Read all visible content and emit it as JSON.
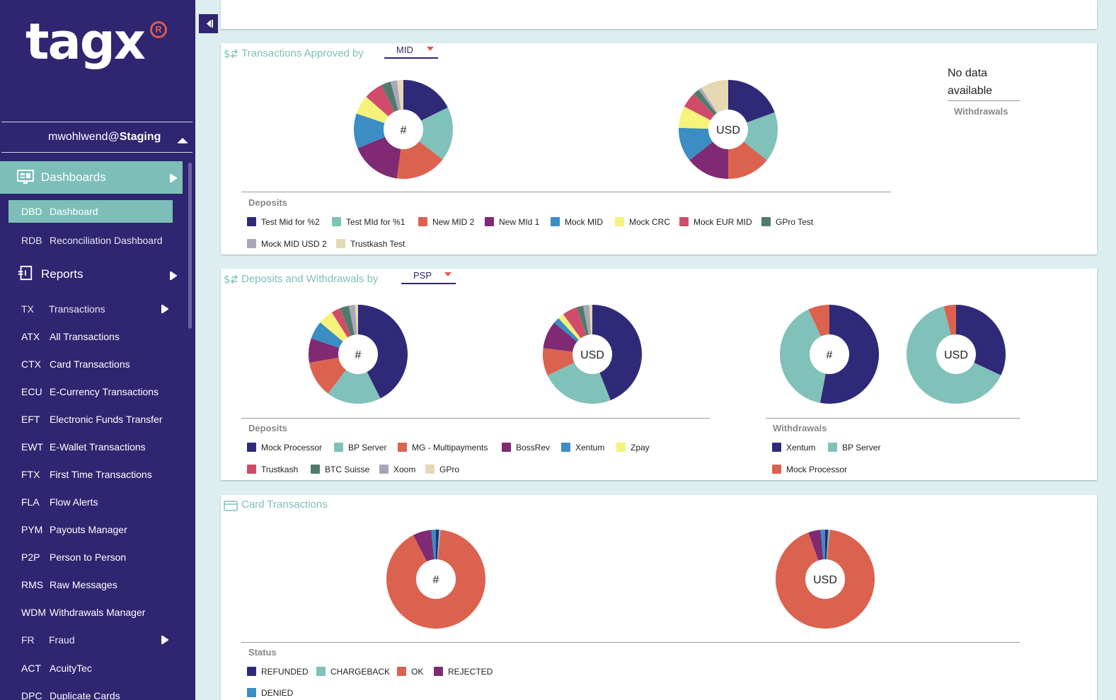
{
  "app": {
    "logo_text": "tagx",
    "logo_mark": "R",
    "user": "mwohlwend",
    "at": "@",
    "environment": "Staging"
  },
  "nav": {
    "dashboards_label": "Dashboards",
    "reports_label": "Reports",
    "dashboard_items": [
      {
        "code": "DBD",
        "label": "Dashboard"
      },
      {
        "code": "RDB",
        "label": "Reconciliation Dashboard"
      }
    ],
    "report_items": [
      {
        "code": "TX",
        "label": "Transactions"
      },
      {
        "code": "ATX",
        "label": "All Transactions"
      },
      {
        "code": "CTX",
        "label": "Card Transactions"
      },
      {
        "code": "ECU",
        "label": "E-Currency Transactions"
      },
      {
        "code": "EFT",
        "label": "Electronic Funds Transfer"
      },
      {
        "code": "EWT",
        "label": "E-Wallet Transactions"
      },
      {
        "code": "FTX",
        "label": "First Time Transactions"
      },
      {
        "code": "FLA",
        "label": "Flow Alerts"
      },
      {
        "code": "PYM",
        "label": "Payouts Manager"
      },
      {
        "code": "P2P",
        "label": "Person to Person"
      },
      {
        "code": "RMS",
        "label": "Raw Messages"
      },
      {
        "code": "WDM",
        "label": "Withdrawals Manager"
      },
      {
        "code": "FR",
        "label": "Fraud"
      },
      {
        "code": "ACT",
        "label": "AcuityTec"
      },
      {
        "code": "DPC",
        "label": "Duplicate Cards"
      }
    ]
  },
  "colors": {
    "navy": "#2f2a78",
    "teal": "#80c1b9",
    "coral": "#dc6250",
    "purple": "#7f2a72",
    "blue": "#3b8dc3",
    "yellow": "#f5f37a",
    "rose": "#d14c6a",
    "green": "#4e7c6a",
    "grey": "#a9a6bb",
    "sand": "#e6d8b4"
  },
  "panels": {
    "approved": {
      "title": "Transactions Approved by",
      "dropdown": "MID",
      "count_label": "#",
      "amount_label": "USD",
      "deposits_title": "Deposits",
      "withdrawals_title": "Withdrawals",
      "no_data": "No data available",
      "legend": [
        {
          "label": "Test Mid for %2",
          "color": "navy"
        },
        {
          "label": "Test MId for %1",
          "color": "teal"
        },
        {
          "label": "New MID 2",
          "color": "coral"
        },
        {
          "label": "New MId 1",
          "color": "purple"
        },
        {
          "label": "Mock MID",
          "color": "blue"
        },
        {
          "label": "Mock CRC",
          "color": "yellow"
        },
        {
          "label": "Mock EUR MID",
          "color": "rose"
        },
        {
          "label": "GPro Test",
          "color": "green"
        },
        {
          "label": "Mock MID USD 2",
          "color": "grey"
        },
        {
          "label": "Trustkash Test",
          "color": "sand"
        }
      ]
    },
    "psp": {
      "title": "Deposits and Withdrawals by",
      "dropdown": "PSP",
      "count_label": "#",
      "amount_label": "USD",
      "deposits_title": "Deposits",
      "withdrawals_title": "Withdrawals",
      "deposit_legend": [
        {
          "label": "Mock Processor",
          "color": "navy"
        },
        {
          "label": "BP Server",
          "color": "teal"
        },
        {
          "label": "MG - Multipayments",
          "color": "coral"
        },
        {
          "label": "BossRev",
          "color": "purple"
        },
        {
          "label": "Xentum",
          "color": "blue"
        },
        {
          "label": "Zpay",
          "color": "yellow"
        },
        {
          "label": "Trustkash",
          "color": "rose"
        },
        {
          "label": "BTC Suisse",
          "color": "green"
        },
        {
          "label": "Xoom",
          "color": "grey"
        },
        {
          "label": "GPro",
          "color": "sand"
        }
      ],
      "withdrawal_legend": [
        {
          "label": "Xentum",
          "color": "navy"
        },
        {
          "label": "BP Server",
          "color": "teal"
        },
        {
          "label": "Mock Processor",
          "color": "coral"
        }
      ]
    },
    "card": {
      "title": "Card Transactions",
      "count_label": "#",
      "amount_label": "USD",
      "status_title": "Status",
      "legend": [
        {
          "label": "REFUNDED",
          "color": "navy"
        },
        {
          "label": "CHARGEBACK",
          "color": "teal"
        },
        {
          "label": "OK",
          "color": "coral"
        },
        {
          "label": "REJECTED",
          "color": "purple"
        },
        {
          "label": "DENIED",
          "color": "blue"
        }
      ]
    }
  },
  "chart_data": [
    {
      "type": "pie",
      "title": "",
      "center_label": "#",
      "categories": [
        "Test Mid for %2",
        "Test MId for %1",
        "New MID 2",
        "New MId 1",
        "Mock MID",
        "Mock CRC",
        "Mock EUR MID",
        "GPro Test",
        "Mock MID USD 2",
        "Trustkash Test"
      ],
      "values": [
        17,
        17,
        16,
        16,
        11,
        6,
        6,
        3,
        2,
        2
      ],
      "colors": [
        "navy",
        "teal",
        "coral",
        "purple",
        "blue",
        "yellow",
        "rose",
        "green",
        "grey",
        "sand"
      ]
    },
    {
      "type": "pie",
      "title": "",
      "center_label": "USD",
      "categories": [
        "Test Mid for %2",
        "Test MId for %1",
        "New MID 2",
        "New MId 1",
        "Mock MID",
        "Mock CRC",
        "Mock EUR MID",
        "GPro Test",
        "Mock MID USD 2",
        "Trustkash Test"
      ],
      "values": [
        19,
        16,
        14,
        14,
        11,
        7,
        5,
        2,
        1,
        9
      ],
      "colors": [
        "navy",
        "teal",
        "coral",
        "purple",
        "blue",
        "yellow",
        "rose",
        "green",
        "grey",
        "sand"
      ]
    },
    {
      "type": "pie",
      "title": "",
      "center_label": "#",
      "categories": [
        "Mock Processor",
        "BP Server",
        "MG - Multipayments",
        "BossRev",
        "Xentum",
        "Zpay",
        "Trustkash",
        "BTC Suisse",
        "Xoom",
        "GPro"
      ],
      "values": [
        43,
        18,
        12,
        8,
        6,
        5,
        3,
        3,
        2,
        1
      ],
      "colors": [
        "navy",
        "teal",
        "coral",
        "purple",
        "blue",
        "yellow",
        "rose",
        "green",
        "grey",
        "sand"
      ]
    },
    {
      "type": "pie",
      "title": "",
      "center_label": "USD",
      "categories": [
        "Mock Processor",
        "BP Server",
        "MG - Multipayments",
        "BossRev",
        "Xentum",
        "Zpay",
        "Trustkash",
        "BTC Suisse",
        "Xoom",
        "GPro"
      ],
      "values": [
        44,
        24,
        9,
        9,
        2,
        2,
        5,
        2,
        2,
        1
      ],
      "colors": [
        "navy",
        "teal",
        "coral",
        "purple",
        "blue",
        "yellow",
        "rose",
        "green",
        "grey",
        "sand"
      ]
    },
    {
      "type": "pie",
      "title": "",
      "center_label": "#",
      "categories": [
        "Xentum",
        "BP Server",
        "Mock Processor"
      ],
      "values": [
        53,
        40,
        7
      ],
      "colors": [
        "navy",
        "teal",
        "coral"
      ]
    },
    {
      "type": "pie",
      "title": "",
      "center_label": "USD",
      "categories": [
        "Xentum",
        "BP Server",
        "Mock Processor"
      ],
      "values": [
        32,
        64,
        4
      ],
      "colors": [
        "navy",
        "teal",
        "coral"
      ]
    },
    {
      "type": "pie",
      "title": "",
      "center_label": "#",
      "categories": [
        "REFUNDED",
        "CHARGEBACK",
        "OK",
        "REJECTED",
        "DENIED"
      ],
      "values": [
        1,
        0.5,
        90,
        6,
        1.5
      ],
      "colors": [
        "navy",
        "teal",
        "coral",
        "purple",
        "blue"
      ]
    },
    {
      "type": "pie",
      "title": "",
      "center_label": "USD",
      "categories": [
        "REFUNDED",
        "CHARGEBACK",
        "OK",
        "REJECTED",
        "DENIED"
      ],
      "values": [
        1,
        0.5,
        93,
        4,
        1.5
      ],
      "colors": [
        "navy",
        "teal",
        "coral",
        "purple",
        "blue"
      ]
    }
  ]
}
